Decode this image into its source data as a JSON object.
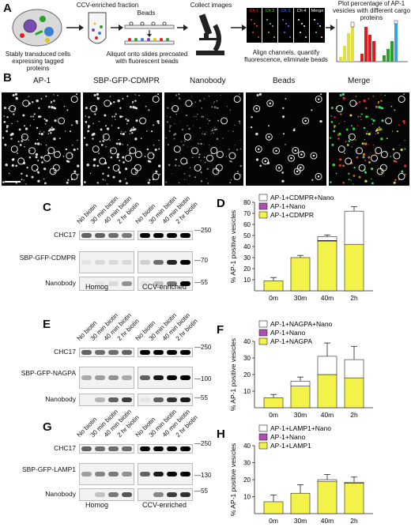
{
  "panelA": {
    "letter": "A",
    "step1_caption": "Stably transduced cells expressing tagged proteins",
    "step2_top": "CCV-enriched fraction",
    "step2_beads": "Beads",
    "step2_caption": "Aliquot onto slides precoated with fluorescent beads",
    "step3_top": "Collect images",
    "step4_caption": "Align channels, quantify fluorescence, eliminate beads",
    "channels": [
      "Ch 1",
      "Ch 2",
      "Ch 3",
      "Ch 4",
      "Merge"
    ],
    "channel_colors": [
      "#ff3333",
      "#66dd44",
      "#5577ff",
      "#ffffff",
      "#ffffff"
    ],
    "step5_caption": "Plot percentage of AP-1 vesicles with different cargo proteins"
  },
  "panelB": {
    "letter": "B",
    "labels": [
      "AP-1",
      "SBP-GFP-CDMPR",
      "Nanobody",
      "Beads",
      "Merge"
    ],
    "label_colors": [
      "#e8201c",
      "#3aa62a",
      "#2233cc",
      "#111111",
      "#111111"
    ]
  },
  "blots": [
    {
      "letter": "C",
      "rows": [
        "CHC17",
        "SBP-GFP-CDMPR",
        "Nanobody"
      ],
      "mw": [
        "250",
        "70",
        "55"
      ],
      "lanes": [
        "No biotin",
        "30 min biotin",
        "40 min biotin",
        "2 hr biotin",
        "No biotin",
        "30 min biotin",
        "40 min biotin",
        "2 hr biotin"
      ],
      "groups": [
        "Homog",
        "CCV-enriched"
      ]
    },
    {
      "letter": "E",
      "rows": [
        "CHC17",
        "SBP-GFP-NAGPA",
        "Nanobody"
      ],
      "mw": [
        "250",
        "100",
        "55"
      ],
      "lanes": [
        "No biotin",
        "30 min biotin",
        "40 min biotin",
        "2 hr biotin",
        "No biotin",
        "30 min biotin",
        "40 min biotin",
        "2 hr biotin"
      ],
      "groups": [
        "",
        ""
      ]
    },
    {
      "letter": "G",
      "rows": [
        "CHC17",
        "SBP-GFP-LAMP1",
        "Nanobody"
      ],
      "mw": [
        "250",
        "130",
        "55"
      ],
      "lanes": [
        "No biotin",
        "30 min biotin",
        "40 min biotin",
        "2 hr biotin",
        "No biotin",
        "30 min biotin",
        "40 min biotin",
        "2 hr biotin"
      ],
      "groups": [
        "Homog",
        "CCV-enriched"
      ]
    }
  ],
  "chart_data": [
    {
      "letter": "D",
      "type": "bar",
      "stacked": true,
      "categories": [
        "0m",
        "30m",
        "40m",
        "2h"
      ],
      "ylabel": "% AP-1 positive vesicles",
      "ylim": [
        0,
        80
      ],
      "yticks": [
        10,
        20,
        30,
        40,
        50,
        60,
        70,
        80
      ],
      "series": [
        {
          "name": "AP-1+CDMPR",
          "color": "#f2f24a",
          "values": [
            9,
            30,
            45,
            42
          ]
        },
        {
          "name": "AP-1+Nano",
          "color": "#b04fb0",
          "values": [
            0,
            0,
            0.5,
            0
          ]
        },
        {
          "name": "AP-1+CDMPR+Nano",
          "color": "#ffffff",
          "values": [
            0,
            0,
            3.5,
            30
          ]
        }
      ],
      "errors": [
        3,
        2,
        1.5,
        4
      ]
    },
    {
      "letter": "F",
      "type": "bar",
      "stacked": true,
      "categories": [
        "0m",
        "30m",
        "40m",
        "2h"
      ],
      "ylabel": "% AP-1 positive vesicles",
      "ylim": [
        0,
        40
      ],
      "yticks": [
        10,
        20,
        30,
        40
      ],
      "series": [
        {
          "name": "AP-1+NAGPA",
          "color": "#f2f24a",
          "values": [
            6,
            13,
            20,
            18
          ]
        },
        {
          "name": "AP-1+Nano",
          "color": "#b04fb0",
          "values": [
            0,
            0,
            0,
            0
          ]
        },
        {
          "name": "AP-1+NAGPA+Nano",
          "color": "#ffffff",
          "values": [
            0,
            3,
            11,
            11
          ]
        }
      ],
      "errors": [
        2,
        2.5,
        8,
        8
      ]
    },
    {
      "letter": "H",
      "type": "bar",
      "stacked": true,
      "categories": [
        "0m",
        "30m",
        "40m",
        "2h"
      ],
      "ylabel": "% AP-1 positive vesicles",
      "ylim": [
        0,
        40
      ],
      "yticks": [
        10,
        20,
        30,
        40
      ],
      "series": [
        {
          "name": "AP-1+LAMP1",
          "color": "#f2f24a",
          "values": [
            7,
            12,
            19,
            18
          ]
        },
        {
          "name": "AP-1+Nano",
          "color": "#b04fb0",
          "values": [
            0,
            0,
            0,
            0
          ]
        },
        {
          "name": "AP-1+LAMP1+Nano",
          "color": "#ffffff",
          "values": [
            0,
            0,
            1,
            0.5
          ]
        }
      ],
      "errors": [
        4,
        5,
        3,
        3
      ]
    }
  ]
}
